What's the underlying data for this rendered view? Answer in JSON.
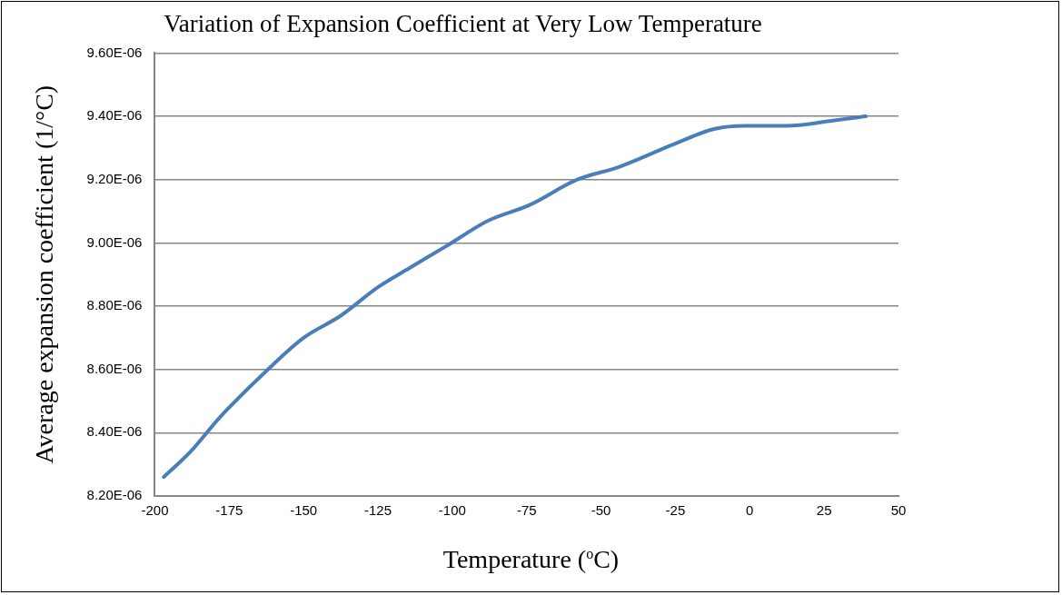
{
  "chart_data": {
    "type": "line",
    "title": "Variation of Expansion Coefficient at Very Low Temperature",
    "xlabel": "Temperature ($^{o}$C)",
    "ylabel": "Average expansion coefficient (1/°C)",
    "x": [
      -197,
      -188,
      -178,
      -162,
      -150,
      -137.5,
      -125,
      -114.5,
      -102,
      -88,
      -74,
      -58,
      -44,
      -26,
      -12,
      -1.5,
      12.5,
      27,
      39
    ],
    "series": [
      {
        "color": "#4a7ebb",
        "values": [
          8.26e-06,
          8.34e-06,
          8.45e-06,
          8.6e-06,
          8.7e-06,
          8.77e-06,
          8.86e-06,
          8.92e-06,
          8.99e-06,
          9.07e-06,
          9.12e-06,
          9.2e-06,
          9.24e-06,
          9.31e-06,
          9.36e-06,
          9.37e-06,
          9.37e-06,
          9.385e-06,
          9.4e-06
        ]
      }
    ],
    "xlim": [
      -200,
      50
    ],
    "xticks": [
      -200,
      -175,
      -150,
      -125,
      -100,
      -75,
      -50,
      -25,
      0,
      25,
      50
    ],
    "ylim": [
      8.2e-06,
      9.6e-06
    ],
    "yticks": [
      {
        "value": 8.2e-06,
        "label": "8.20E-06"
      },
      {
        "value": 8.4e-06,
        "label": "8.40E-06"
      },
      {
        "value": 8.6e-06,
        "label": "8.60E-06"
      },
      {
        "value": 8.8e-06,
        "label": "8.80E-06"
      },
      {
        "value": 9e-06,
        "label": "9.00E-06"
      },
      {
        "value": 9.2e-06,
        "label": "9.20E-06"
      },
      {
        "value": 9.4e-06,
        "label": "9.40E-06"
      },
      {
        "value": 9.6e-06,
        "label": "9.60E-06"
      }
    ],
    "grid": "y",
    "legend": false,
    "marker": "none",
    "line_style": "solid"
  }
}
